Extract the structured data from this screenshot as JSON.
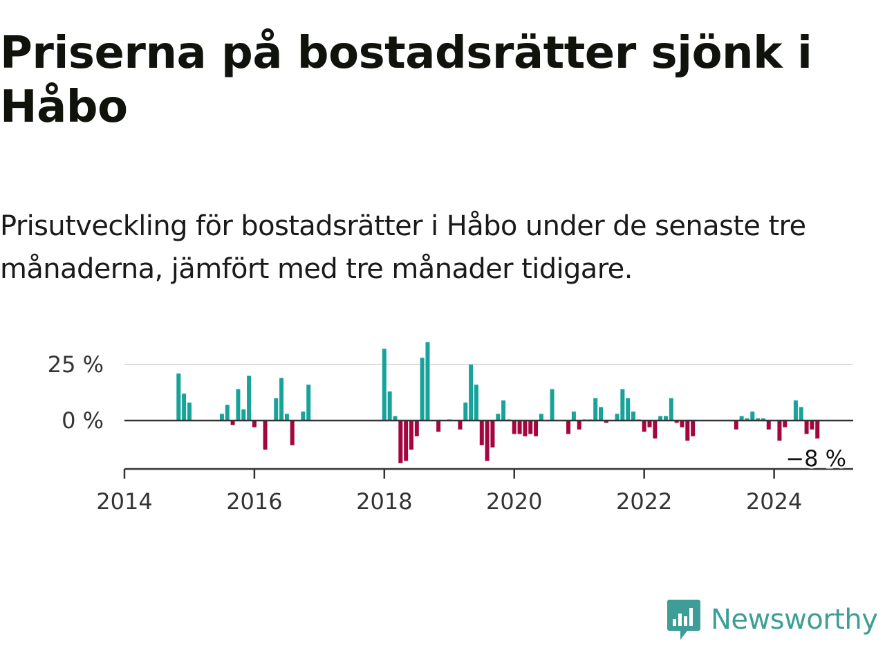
{
  "header": {
    "title": "Priserna på bostadsrätter sjönk i Håbo",
    "subtitle": "Prisutveckling för bostadsrätter i Håbo under de senaste tre månaderna, jämfört med tre månader tidigare."
  },
  "brand": {
    "name": "Newsworthy"
  },
  "colors": {
    "positive": "#17a39a",
    "negative": "#a3063f",
    "gridline": "#dddddd",
    "axis": "#333333",
    "brand": "#3e9e97"
  },
  "chart_data": {
    "type": "bar",
    "title": "Priserna på bostadsrätter sjönk i Håbo",
    "subtitle": "Prisutveckling för bostadsrätter i Håbo under de senaste tre månaderna, jämfört med tre månader tidigare.",
    "xlabel": "",
    "ylabel": "",
    "x_unit": "month",
    "x_range": [
      "2014-01",
      "2025-01"
    ],
    "ylim": [
      -22,
      38
    ],
    "y_ticks": [
      {
        "value": 0,
        "label": "0 %"
      },
      {
        "value": 25,
        "label": "25 %"
      }
    ],
    "x_ticks": [
      {
        "date": "2014-01",
        "label": "2014"
      },
      {
        "date": "2016-01",
        "label": "2016"
      },
      {
        "date": "2018-01",
        "label": "2018"
      },
      {
        "date": "2020-01",
        "label": "2020"
      },
      {
        "date": "2022-01",
        "label": "2022"
      },
      {
        "date": "2024-01",
        "label": "2024"
      }
    ],
    "grid": true,
    "last_value_label": "−8 %",
    "series": [
      {
        "values": [
          {
            "date": "2014-11",
            "value": 21
          },
          {
            "date": "2014-12",
            "value": 12
          },
          {
            "date": "2015-01",
            "value": 8
          },
          {
            "date": "2015-07",
            "value": 3
          },
          {
            "date": "2015-08",
            "value": 7
          },
          {
            "date": "2015-09",
            "value": -2
          },
          {
            "date": "2015-10",
            "value": 14
          },
          {
            "date": "2015-11",
            "value": 5
          },
          {
            "date": "2015-12",
            "value": 20
          },
          {
            "date": "2016-01",
            "value": -3
          },
          {
            "date": "2016-03",
            "value": -13
          },
          {
            "date": "2016-05",
            "value": 10
          },
          {
            "date": "2016-06",
            "value": 19
          },
          {
            "date": "2016-07",
            "value": 3
          },
          {
            "date": "2016-08",
            "value": -11
          },
          {
            "date": "2016-10",
            "value": 4
          },
          {
            "date": "2016-11",
            "value": 16
          },
          {
            "date": "2018-01",
            "value": 32
          },
          {
            "date": "2018-02",
            "value": 13
          },
          {
            "date": "2018-03",
            "value": 2
          },
          {
            "date": "2018-04",
            "value": -19
          },
          {
            "date": "2018-05",
            "value": -18
          },
          {
            "date": "2018-06",
            "value": -13
          },
          {
            "date": "2018-07",
            "value": -7
          },
          {
            "date": "2018-08",
            "value": 28
          },
          {
            "date": "2018-09",
            "value": 35
          },
          {
            "date": "2018-11",
            "value": -5
          },
          {
            "date": "2019-01",
            "value": 0.5
          },
          {
            "date": "2019-03",
            "value": -4
          },
          {
            "date": "2019-04",
            "value": 8
          },
          {
            "date": "2019-05",
            "value": 25
          },
          {
            "date": "2019-06",
            "value": 16
          },
          {
            "date": "2019-07",
            "value": -11
          },
          {
            "date": "2019-08",
            "value": -18
          },
          {
            "date": "2019-09",
            "value": -12
          },
          {
            "date": "2019-10",
            "value": 3
          },
          {
            "date": "2019-11",
            "value": 9
          },
          {
            "date": "2019-12",
            "value": 0.5
          },
          {
            "date": "2020-01",
            "value": -6
          },
          {
            "date": "2020-02",
            "value": -6
          },
          {
            "date": "2020-03",
            "value": -7
          },
          {
            "date": "2020-04",
            "value": -6
          },
          {
            "date": "2020-05",
            "value": -7
          },
          {
            "date": "2020-06",
            "value": 3
          },
          {
            "date": "2020-08",
            "value": 14
          },
          {
            "date": "2020-11",
            "value": -6
          },
          {
            "date": "2020-12",
            "value": 4
          },
          {
            "date": "2021-01",
            "value": -4
          },
          {
            "date": "2021-02",
            "value": 0.5
          },
          {
            "date": "2021-03",
            "value": 0.5
          },
          {
            "date": "2021-04",
            "value": 10
          },
          {
            "date": "2021-05",
            "value": 6
          },
          {
            "date": "2021-06",
            "value": -1
          },
          {
            "date": "2021-08",
            "value": 3
          },
          {
            "date": "2021-09",
            "value": 14
          },
          {
            "date": "2021-10",
            "value": 10
          },
          {
            "date": "2021-11",
            "value": 4
          },
          {
            "date": "2021-12",
            "value": 0.5
          },
          {
            "date": "2022-01",
            "value": -5
          },
          {
            "date": "2022-02",
            "value": -3
          },
          {
            "date": "2022-03",
            "value": -8
          },
          {
            "date": "2022-04",
            "value": 2
          },
          {
            "date": "2022-05",
            "value": 2
          },
          {
            "date": "2022-06",
            "value": 10
          },
          {
            "date": "2022-07",
            "value": -1
          },
          {
            "date": "2022-08",
            "value": -3
          },
          {
            "date": "2022-09",
            "value": -9
          },
          {
            "date": "2022-10",
            "value": -7
          },
          {
            "date": "2023-06",
            "value": -4
          },
          {
            "date": "2023-07",
            "value": 2
          },
          {
            "date": "2023-08",
            "value": 1
          },
          {
            "date": "2023-09",
            "value": 4
          },
          {
            "date": "2023-10",
            "value": 1
          },
          {
            "date": "2023-11",
            "value": 1
          },
          {
            "date": "2023-12",
            "value": -4
          },
          {
            "date": "2024-02",
            "value": -9
          },
          {
            "date": "2024-03",
            "value": -3
          },
          {
            "date": "2024-05",
            "value": 9
          },
          {
            "date": "2024-06",
            "value": 6
          },
          {
            "date": "2024-07",
            "value": -6
          },
          {
            "date": "2024-08",
            "value": -4
          },
          {
            "date": "2024-09",
            "value": -8
          }
        ]
      }
    ]
  }
}
